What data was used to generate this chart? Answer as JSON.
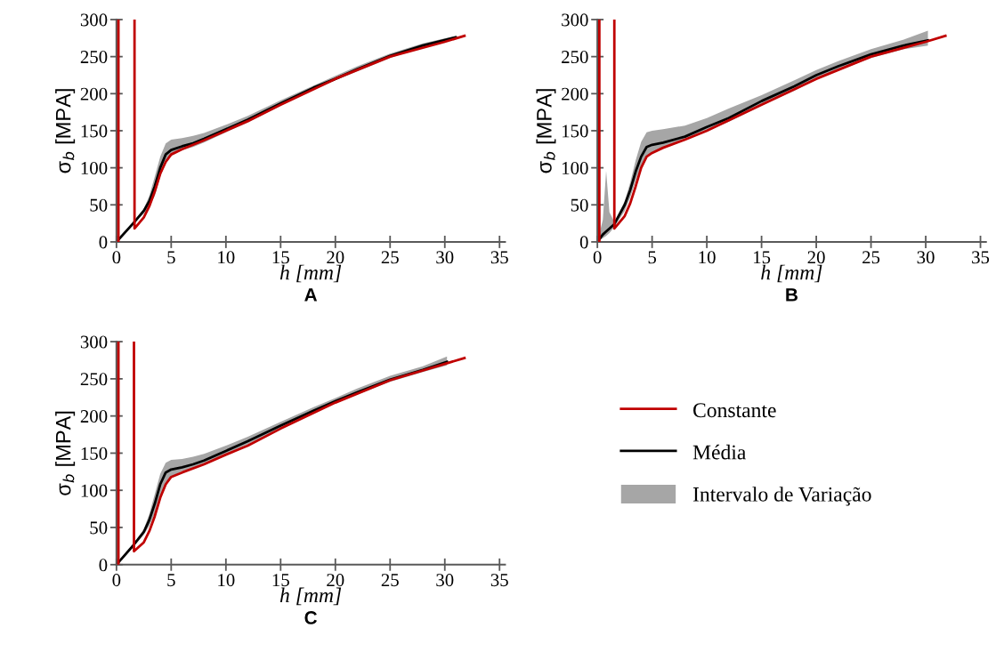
{
  "chart_data": [
    {
      "type": "line",
      "title": "A",
      "xlabel": "h [mm]",
      "ylabel": "σ$_{b}$ [MPA]",
      "xlim": [
        0,
        35.5
      ],
      "ylim": [
        0,
        300
      ],
      "xticks": [
        0,
        5,
        10,
        15,
        20,
        25,
        30,
        35
      ],
      "yticks": [
        0,
        50,
        100,
        150,
        200,
        250,
        300
      ],
      "grid": false,
      "legend": false,
      "ref_lines": [
        {
          "axis": "x",
          "value": 0.18,
          "color": "#c00000"
        }
      ],
      "series": [
        {
          "color": "#c00000",
          "x": [
            1.65,
            1.65,
            2.5,
            3,
            3.5,
            4,
            4.5,
            5,
            6,
            8,
            10,
            12,
            15,
            20,
            25,
            30,
            31.8
          ],
          "values": [
            300,
            18,
            33,
            48,
            68,
            92,
            108,
            118,
            125,
            137,
            150,
            163,
            185,
            220,
            250,
            270,
            278
          ]
        },
        {
          "color": "#000000",
          "x": [
            0,
            1.65,
            2.5,
            3,
            3.5,
            4,
            4.5,
            5,
            6,
            7,
            8,
            10,
            12,
            15,
            18,
            20,
            22,
            25,
            28,
            31
          ],
          "values": [
            0,
            27,
            42,
            55,
            75,
            100,
            118,
            124,
            129,
            133,
            139,
            152,
            165,
            187,
            208,
            220,
            233,
            251,
            265,
            276
          ],
          "lower": [
            0,
            26,
            38,
            48,
            62,
            88,
            106,
            116,
            124,
            128,
            134,
            148,
            161,
            184,
            205,
            218,
            230,
            248,
            263,
            274
          ],
          "upper": [
            0,
            28,
            45,
            62,
            88,
            115,
            133,
            138,
            140,
            143,
            147,
            158,
            170,
            191,
            211,
            224,
            237,
            254,
            268,
            278
          ]
        }
      ]
    },
    {
      "type": "line",
      "title": "B",
      "xlabel": "h [mm]",
      "ylabel": "σ$_{b}$ [MPA]",
      "xlim": [
        0,
        35.5
      ],
      "ylim": [
        0,
        300
      ],
      "xticks": [
        0,
        5,
        10,
        15,
        20,
        25,
        30,
        35
      ],
      "yticks": [
        0,
        50,
        100,
        150,
        200,
        250,
        300
      ],
      "grid": false,
      "legend": false,
      "ref_lines": [
        {
          "axis": "x",
          "value": 0.18,
          "color": "#c00000"
        }
      ],
      "series": [
        {
          "color": "#c00000",
          "x": [
            1.55,
            1.55,
            2.5,
            3,
            3.5,
            4,
            4.5,
            5,
            6,
            8,
            10,
            15,
            20,
            25,
            30,
            31.8
          ],
          "values": [
            300,
            18,
            35,
            52,
            75,
            100,
            115,
            120,
            127,
            138,
            150,
            185,
            220,
            250,
            270,
            278
          ]
        },
        {
          "color": "#000000",
          "x": [
            0,
            0.5,
            0.8,
            1.1,
            1.55,
            2.5,
            3,
            3.5,
            4,
            4.5,
            5,
            6,
            8,
            10,
            12,
            15,
            18,
            20,
            22,
            25,
            28,
            30.2
          ],
          "values": [
            0,
            10,
            14,
            18,
            24,
            50,
            70,
            95,
            115,
            128,
            131,
            134,
            142,
            155,
            167,
            190,
            210,
            225,
            237,
            253,
            265,
            272
          ],
          "lower": [
            0,
            5,
            8,
            12,
            20,
            42,
            60,
            82,
            102,
            115,
            120,
            126,
            137,
            150,
            162,
            184,
            204,
            219,
            231,
            248,
            260,
            265
          ],
          "upper": [
            0,
            30,
            96,
            40,
            27,
            55,
            80,
            110,
            135,
            148,
            150,
            152,
            157,
            167,
            180,
            198,
            218,
            232,
            244,
            260,
            273,
            285
          ]
        }
      ]
    },
    {
      "type": "line",
      "title": "C",
      "xlabel": "h [mm]",
      "ylabel": "σ$_{b}$ [MPA]",
      "xlim": [
        0,
        35.5
      ],
      "ylim": [
        0,
        300
      ],
      "xticks": [
        0,
        5,
        10,
        15,
        20,
        25,
        30,
        35
      ],
      "yticks": [
        0,
        50,
        100,
        150,
        200,
        250,
        300
      ],
      "grid": false,
      "legend": "right",
      "ref_lines": [
        {
          "axis": "x",
          "value": 0.18,
          "color": "#c00000"
        }
      ],
      "annotations": [
        "Intervalo de Variação"
      ],
      "series": [
        {
          "name": "Constante",
          "color": "#c00000",
          "x": [
            1.6,
            1.6,
            2.5,
            3,
            3.5,
            4,
            4.5,
            5,
            6,
            8,
            10,
            12,
            15,
            20,
            25,
            30,
            31.8
          ],
          "values": [
            300,
            18,
            30,
            45,
            65,
            90,
            108,
            118,
            124,
            135,
            148,
            160,
            183,
            218,
            248,
            270,
            278
          ]
        },
        {
          "name": "Média",
          "color": "#000000",
          "x": [
            0,
            1.6,
            2.5,
            3,
            3.5,
            4,
            4.5,
            5,
            6,
            7,
            8,
            10,
            12,
            15,
            18,
            20,
            22,
            25,
            28,
            30.2
          ],
          "values": [
            0,
            27,
            44,
            60,
            82,
            108,
            124,
            128,
            131,
            135,
            140,
            153,
            166,
            187,
            207,
            220,
            232,
            249,
            262,
            273
          ],
          "lower": [
            0,
            25,
            40,
            52,
            68,
            92,
            110,
            118,
            126,
            130,
            135,
            149,
            162,
            183,
            204,
            217,
            229,
            246,
            259,
            268
          ],
          "upper": [
            0,
            29,
            48,
            68,
            95,
            122,
            137,
            141,
            142,
            145,
            149,
            160,
            172,
            192,
            212,
            224,
            237,
            254,
            267,
            280
          ]
        }
      ]
    }
  ]
}
